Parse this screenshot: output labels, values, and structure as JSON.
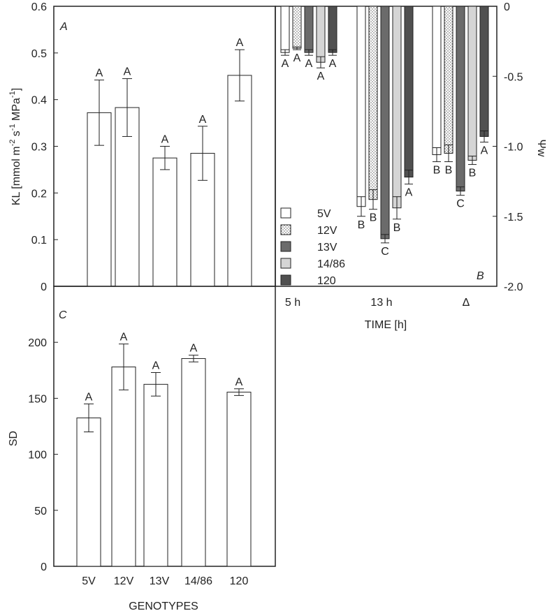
{
  "chart_data": [
    {
      "panel": "A",
      "type": "bar",
      "ylabel": {
        "main": "KL [mmol m",
        "sup1": "-2",
        "mid1": " s",
        "sup2": "-1",
        "mid2": " MPa",
        "sup3": "-1",
        "end": "]"
      },
      "ylim": [
        0,
        0.6
      ],
      "yticks": [
        "0",
        "0.1",
        "0.2",
        "0.3",
        "0.4",
        "0.5",
        "0.6"
      ],
      "categories": [
        "5V",
        "12V",
        "13V",
        "14/86",
        "120"
      ],
      "values": [
        0.372,
        0.383,
        0.275,
        0.285,
        0.452
      ],
      "errors": [
        0.07,
        0.062,
        0.025,
        0.058,
        0.055
      ],
      "letters": [
        "A",
        "A",
        "A",
        "A",
        "A"
      ]
    },
    {
      "panel": "B",
      "type": "bar",
      "ylabel": "Ψw",
      "xlabel": "TIME [h]",
      "ylim": [
        -2.0,
        0
      ],
      "yticks": [
        "0",
        "-0.5",
        "-1.0",
        "-1.5",
        "-2.0"
      ],
      "categories": [
        "5 h",
        "13 h",
        "Δ"
      ],
      "series": [
        {
          "name": "5V",
          "values": [
            -0.33,
            -1.43,
            -1.06
          ],
          "errors": [
            0.02,
            0.07,
            0.05
          ],
          "letters": [
            "A",
            "B",
            "B"
          ]
        },
        {
          "name": "12V",
          "values": [
            -0.3,
            -1.38,
            -1.05
          ],
          "errors": [
            0.01,
            0.07,
            0.06
          ],
          "letters": [
            "A",
            "B",
            "B"
          ]
        },
        {
          "name": "13V",
          "values": [
            -0.33,
            -1.66,
            -1.32
          ],
          "errors": [
            0.02,
            0.03,
            0.03
          ],
          "letters": [
            "A",
            "C",
            "C"
          ]
        },
        {
          "name": "14/86",
          "values": [
            -0.4,
            -1.44,
            -1.1
          ],
          "errors": [
            0.04,
            0.08,
            0.03
          ],
          "letters": [
            "A",
            "B",
            "B"
          ]
        },
        {
          "name": "120",
          "values": [
            -0.33,
            -1.22,
            -0.93
          ],
          "errors": [
            0.02,
            0.05,
            0.04
          ],
          "letters": [
            "A",
            "A",
            "A"
          ]
        }
      ],
      "legend": [
        "5V",
        "12V",
        "13V",
        "14/86",
        "120"
      ]
    },
    {
      "panel": "C",
      "type": "bar",
      "ylabel": "SD",
      "xlabel": "GENOTYPES",
      "ylim": [
        0,
        250
      ],
      "yticks": [
        "0",
        "50",
        "100",
        "150",
        "200"
      ],
      "categories": [
        "5V",
        "12V",
        "13V",
        "14/86",
        "120"
      ],
      "values": [
        132.5,
        178.0,
        162.5,
        185.5,
        155.5
      ],
      "errors": [
        12.5,
        20.5,
        10.5,
        3.0,
        3.0
      ],
      "letters": [
        "A",
        "A",
        "A",
        "A",
        "A"
      ]
    }
  ],
  "colors": {
    "white": "#ffffff",
    "dotted": "#ffffff",
    "dark": "#6b6b6b",
    "light": "#d5d5d5",
    "darkest": "#505050",
    "axis": "#222222"
  }
}
